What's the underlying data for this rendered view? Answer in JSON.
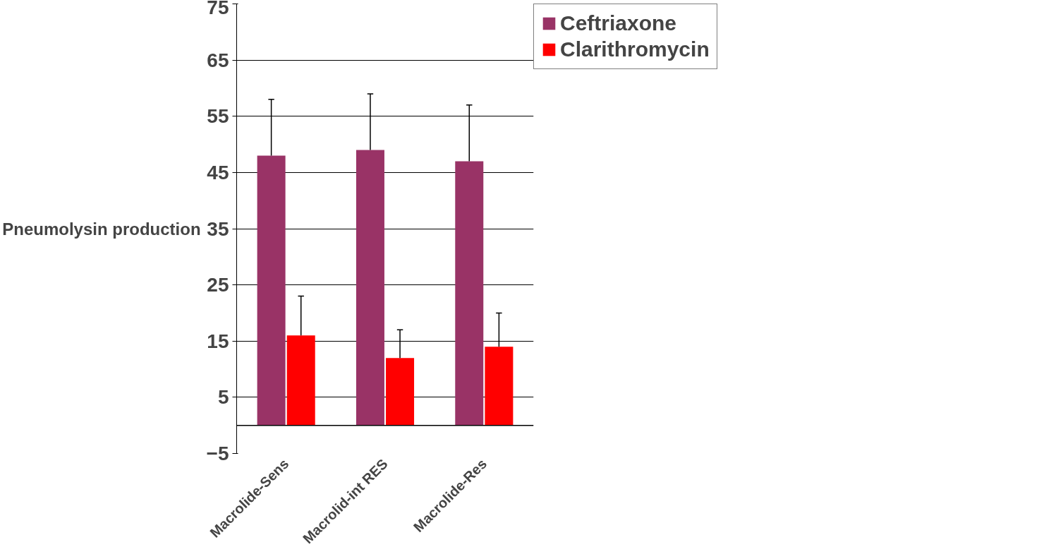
{
  "chart_data": {
    "type": "bar",
    "ylabel": "Pneumolysin production",
    "categories": [
      "Macrolide-Sens",
      "Macrolid-int RES",
      "Macrolide-Res"
    ],
    "series": [
      {
        "name": "Ceftriaxone",
        "color": "#993366",
        "values": [
          48,
          49,
          47
        ],
        "errors": [
          [
            48,
            58
          ],
          [
            49,
            59
          ],
          [
            47,
            57
          ]
        ]
      },
      {
        "name": "Clarithromycin",
        "color": "#ff0000",
        "values": [
          16,
          12,
          14
        ],
        "errors": [
          [
            16,
            23
          ],
          [
            12,
            17
          ],
          [
            14,
            20
          ]
        ]
      }
    ],
    "ylim": [
      -5,
      75
    ],
    "yticks": [
      -5,
      5,
      15,
      25,
      35,
      45,
      55,
      65,
      75
    ],
    "grid": "y",
    "legend": "right"
  }
}
